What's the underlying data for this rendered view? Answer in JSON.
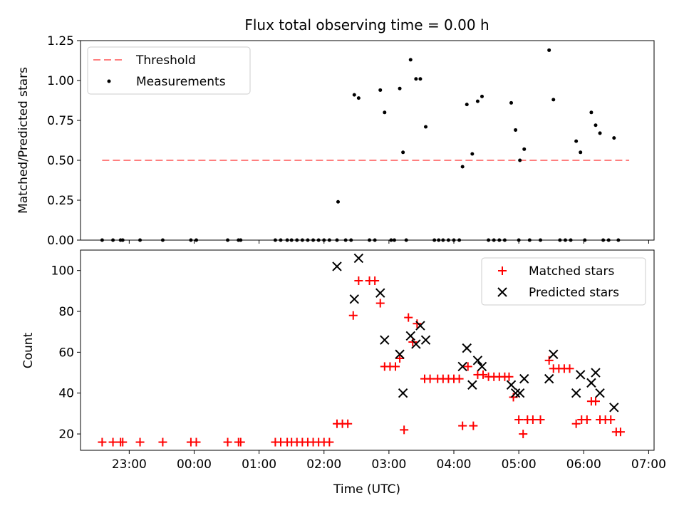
{
  "chart_data": [
    {
      "type": "scatter",
      "title": "Flux total observing time = 0.00 h",
      "xlabel": "",
      "ylabel": "Matched/Predicted stars",
      "xlim": [
        "22:15",
        "07:05"
      ],
      "ylim": [
        0,
        1.25
      ],
      "yticks": [
        "0.00",
        "0.25",
        "0.50",
        "0.75",
        "1.00",
        "1.25"
      ],
      "yticks_values": [
        0,
        0.25,
        0.5,
        0.75,
        1.0,
        1.25
      ],
      "legend": {
        "position": "upper-left",
        "entries": [
          "Threshold",
          "Measurements"
        ]
      },
      "threshold": {
        "name": "Threshold",
        "value": 0.5,
        "x_range": [
          "22:35",
          "06:42"
        ],
        "color": "#ff7f7f"
      },
      "series": [
        {
          "name": "Measurements",
          "color": "#000000",
          "points": [
            [
              "22:35",
              0
            ],
            [
              "22:45",
              0
            ],
            [
              "22:52",
              0
            ],
            [
              "22:54",
              0
            ],
            [
              "23:10",
              0
            ],
            [
              "23:31",
              0
            ],
            [
              "23:57",
              0
            ],
            [
              "00:02",
              0
            ],
            [
              "00:31",
              0
            ],
            [
              "00:41",
              0
            ],
            [
              "00:43",
              0
            ],
            [
              "01:15",
              0
            ],
            [
              "01:20",
              0
            ],
            [
              "01:26",
              0
            ],
            [
              "01:30",
              0
            ],
            [
              "01:35",
              0
            ],
            [
              "01:40",
              0
            ],
            [
              "01:45",
              0
            ],
            [
              "01:50",
              0
            ],
            [
              "01:55",
              0
            ],
            [
              "02:00",
              0
            ],
            [
              "02:05",
              0
            ],
            [
              "02:12",
              0
            ],
            [
              "02:13",
              0.24
            ],
            [
              "02:20",
              0
            ],
            [
              "02:25",
              0
            ],
            [
              "02:28",
              0.91
            ],
            [
              "02:32",
              0.89
            ],
            [
              "02:42",
              0
            ],
            [
              "02:47",
              0
            ],
            [
              "02:52",
              0.94
            ],
            [
              "02:56",
              0.8
            ],
            [
              "03:02",
              0
            ],
            [
              "03:05",
              0
            ],
            [
              "03:10",
              0.95
            ],
            [
              "03:13",
              0.55
            ],
            [
              "03:16",
              0
            ],
            [
              "03:20",
              1.13
            ],
            [
              "03:25",
              1.01
            ],
            [
              "03:29",
              1.01
            ],
            [
              "03:34",
              0.71
            ],
            [
              "03:42",
              0
            ],
            [
              "03:46",
              0
            ],
            [
              "03:50",
              0
            ],
            [
              "03:55",
              0
            ],
            [
              "04:00",
              0
            ],
            [
              "04:05",
              0
            ],
            [
              "04:08",
              0.46
            ],
            [
              "04:12",
              0.85
            ],
            [
              "04:17",
              0.54
            ],
            [
              "04:22",
              0.87
            ],
            [
              "04:26",
              0.9
            ],
            [
              "04:32",
              0
            ],
            [
              "04:37",
              0
            ],
            [
              "04:42",
              0
            ],
            [
              "04:47",
              0
            ],
            [
              "04:53",
              0.86
            ],
            [
              "04:57",
              0.69
            ],
            [
              "05:00",
              0
            ],
            [
              "05:01",
              0.5
            ],
            [
              "05:05",
              0.57
            ],
            [
              "05:10",
              0
            ],
            [
              "05:20",
              0
            ],
            [
              "05:28",
              1.19
            ],
            [
              "05:32",
              0.88
            ],
            [
              "05:38",
              0
            ],
            [
              "05:43",
              0
            ],
            [
              "05:48",
              0
            ],
            [
              "05:53",
              0.62
            ],
            [
              "05:57",
              0.55
            ],
            [
              "06:01",
              0
            ],
            [
              "06:07",
              0.8
            ],
            [
              "06:11",
              0.72
            ],
            [
              "06:15",
              0.67
            ],
            [
              "06:18",
              0
            ],
            [
              "06:23",
              0
            ],
            [
              "06:28",
              0.64
            ],
            [
              "06:32",
              0
            ]
          ]
        }
      ]
    },
    {
      "type": "scatter",
      "title": "",
      "xlabel": "Time (UTC)",
      "ylabel": "Count",
      "xlim": [
        "22:15",
        "07:05"
      ],
      "ylim": [
        12,
        110
      ],
      "xticks": [
        "23:00",
        "00:00",
        "01:00",
        "02:00",
        "03:00",
        "04:00",
        "05:00",
        "06:00",
        "07:00"
      ],
      "xticks_values": [
        "23:00",
        "00:00",
        "01:00",
        "02:00",
        "03:00",
        "04:00",
        "05:00",
        "06:00",
        "07:00"
      ],
      "yticks": [
        "20",
        "40",
        "60",
        "80",
        "100"
      ],
      "yticks_values": [
        20,
        40,
        60,
        80,
        100
      ],
      "legend": {
        "position": "upper-right",
        "entries": [
          "Matched stars",
          "Predicted stars"
        ]
      },
      "series": [
        {
          "name": "Matched stars",
          "color": "#ff0000",
          "marker": "plus",
          "points": [
            [
              "22:35",
              16
            ],
            [
              "22:45",
              16
            ],
            [
              "22:52",
              16
            ],
            [
              "22:54",
              16
            ],
            [
              "23:10",
              16
            ],
            [
              "23:31",
              16
            ],
            [
              "23:57",
              16
            ],
            [
              "00:02",
              16
            ],
            [
              "00:31",
              16
            ],
            [
              "00:41",
              16
            ],
            [
              "00:43",
              16
            ],
            [
              "01:15",
              16
            ],
            [
              "01:20",
              16
            ],
            [
              "01:26",
              16
            ],
            [
              "01:30",
              16
            ],
            [
              "01:35",
              16
            ],
            [
              "01:40",
              16
            ],
            [
              "01:45",
              16
            ],
            [
              "01:50",
              16
            ],
            [
              "01:55",
              16
            ],
            [
              "02:00",
              16
            ],
            [
              "02:05",
              16
            ],
            [
              "02:12",
              25
            ],
            [
              "02:17",
              25
            ],
            [
              "02:22",
              25
            ],
            [
              "02:27",
              78
            ],
            [
              "02:32",
              95
            ],
            [
              "02:42",
              95
            ],
            [
              "02:47",
              95
            ],
            [
              "02:52",
              84
            ],
            [
              "02:56",
              53
            ],
            [
              "03:01",
              53
            ],
            [
              "03:06",
              53
            ],
            [
              "03:10",
              57
            ],
            [
              "03:14",
              22
            ],
            [
              "03:18",
              77
            ],
            [
              "03:22",
              65
            ],
            [
              "03:26",
              74
            ],
            [
              "03:33",
              47
            ],
            [
              "03:38",
              47
            ],
            [
              "03:45",
              47
            ],
            [
              "03:50",
              47
            ],
            [
              "03:55",
              47
            ],
            [
              "04:00",
              47
            ],
            [
              "04:05",
              47
            ],
            [
              "04:08",
              24
            ],
            [
              "04:13",
              53
            ],
            [
              "04:18",
              24
            ],
            [
              "04:22",
              49
            ],
            [
              "04:27",
              49
            ],
            [
              "04:32",
              48
            ],
            [
              "04:37",
              48
            ],
            [
              "04:42",
              48
            ],
            [
              "04:47",
              48
            ],
            [
              "04:51",
              48
            ],
            [
              "04:55",
              38
            ],
            [
              "05:00",
              27
            ],
            [
              "05:04",
              20
            ],
            [
              "05:08",
              27
            ],
            [
              "05:13",
              27
            ],
            [
              "05:20",
              27
            ],
            [
              "05:28",
              56
            ],
            [
              "05:32",
              52
            ],
            [
              "05:37",
              52
            ],
            [
              "05:42",
              52
            ],
            [
              "05:47",
              52
            ],
            [
              "05:53",
              25
            ],
            [
              "05:58",
              27
            ],
            [
              "06:03",
              27
            ],
            [
              "06:07",
              36
            ],
            [
              "06:11",
              36
            ],
            [
              "06:15",
              27
            ],
            [
              "06:20",
              27
            ],
            [
              "06:25",
              27
            ],
            [
              "06:30",
              21
            ],
            [
              "06:34",
              21
            ]
          ]
        },
        {
          "name": "Predicted stars",
          "color": "#000000",
          "marker": "x",
          "points": [
            [
              "02:12",
              102
            ],
            [
              "02:28",
              86
            ],
            [
              "02:32",
              106
            ],
            [
              "02:52",
              89
            ],
            [
              "02:56",
              66
            ],
            [
              "03:10",
              59
            ],
            [
              "03:13",
              40
            ],
            [
              "03:20",
              68
            ],
            [
              "03:25",
              64
            ],
            [
              "03:29",
              73
            ],
            [
              "03:34",
              66
            ],
            [
              "04:08",
              53
            ],
            [
              "04:12",
              62
            ],
            [
              "04:17",
              44
            ],
            [
              "04:22",
              56
            ],
            [
              "04:26",
              53
            ],
            [
              "04:53",
              44
            ],
            [
              "04:57",
              40
            ],
            [
              "05:01",
              40
            ],
            [
              "05:05",
              47
            ],
            [
              "05:28",
              47
            ],
            [
              "05:32",
              59
            ],
            [
              "05:53",
              40
            ],
            [
              "05:57",
              49
            ],
            [
              "06:07",
              45
            ],
            [
              "06:11",
              50
            ],
            [
              "06:15",
              40
            ],
            [
              "06:28",
              33
            ]
          ]
        }
      ]
    }
  ]
}
